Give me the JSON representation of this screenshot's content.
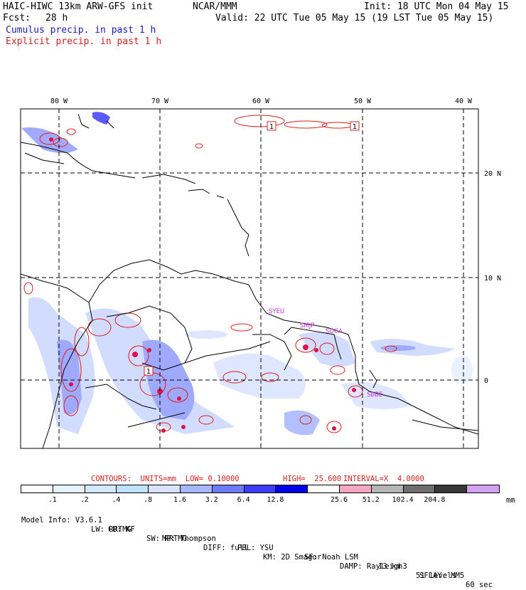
{
  "header": {
    "title": "HAIC-HIWC 13km ARW-GFS init",
    "source": "NCAR/MMM",
    "init": "Init: 18 UTC Mon 04 May 15",
    "fcst_label": "Fcst:",
    "fcst_value": "28 h",
    "valid": "Valid: 22 UTC Tue 05 May 15 (19 LST Tue 05 May 15)",
    "legend_cumulus": "Cumulus precip. in past 1 h",
    "legend_explicit": "Explicit precip. in past 1 h"
  },
  "map": {
    "lon_labels": [
      "80 W",
      "70 W",
      "60 W",
      "50 W",
      "40 W"
    ],
    "lat_labels": [
      "20 N",
      "10 N",
      "0"
    ],
    "station_labels": [
      "SYEU",
      "SMJP",
      "SOCA",
      "SBBE"
    ],
    "high_markers": [
      "1",
      "1",
      "1"
    ]
  },
  "contours": {
    "units_label": "CONTOURS:  UNITS=mm  LOW= 0.10000",
    "high_label": "HIGH=  25.600",
    "interval_label": "INTERVAL=X  4.0000"
  },
  "colorbar": {
    "labels": [
      ".1",
      ".2",
      ".4",
      ".8",
      "1.6",
      "3.2",
      "6.4",
      "12.8",
      "25.6",
      "51.2",
      "102.4",
      "204.8"
    ],
    "unit": "mm",
    "colors": [
      "#ffffff",
      "#e6f2ff",
      "#d3e9ff",
      "#bfe1ff",
      "#d9e3ff",
      "#a6b6ff",
      "#6f7bff",
      "#3d3dff",
      "#0000e6",
      "#ffffff",
      "#f6a7c2",
      "#b5b5b5",
      "#6e6e6e",
      "#383838",
      "#d2a3f2"
    ]
  },
  "model_info": {
    "line1": [
      "Model Info: V3.6.1",
      "CU: KF",
      "MP: Thompson",
      "PBL: YSU",
      "SF: Noah LSM",
      "13 km",
      "51 levels",
      "60 sec"
    ],
    "line2": [
      "LW: RRTMG",
      "SW: RRTMG",
      "DIFF: full",
      "KM: 2D Smagor",
      "DAMP: Rayleigh3",
      "SFLAY: MM5"
    ]
  }
}
